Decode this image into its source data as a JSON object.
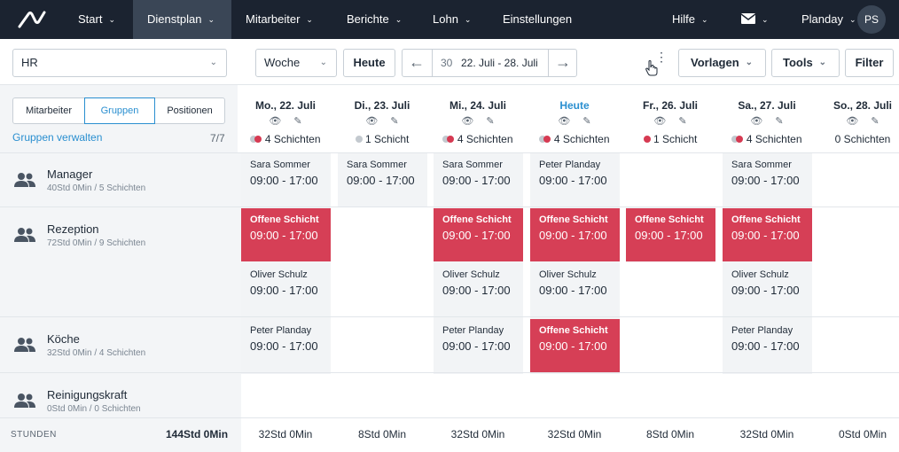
{
  "nav": {
    "items": [
      {
        "label": "Start",
        "chevron": true
      },
      {
        "label": "Dienstplan",
        "chevron": true
      },
      {
        "label": "Mitarbeiter",
        "chevron": true
      },
      {
        "label": "Berichte",
        "chevron": true
      },
      {
        "label": "Lohn",
        "chevron": true
      },
      {
        "label": "Einstellungen",
        "chevron": false
      }
    ],
    "help": "Hilfe",
    "account": "Planday",
    "avatar": "PS"
  },
  "toolbar": {
    "department": "HR",
    "view": "Woche",
    "today_button": "Heute",
    "week_number": "30",
    "date_range": "22. Juli - 28. Juli",
    "templates": "Vorlagen",
    "tools": "Tools",
    "filter": "Filter"
  },
  "left": {
    "tabs": [
      "Mitarbeiter",
      "Gruppen",
      "Positionen"
    ],
    "active_tab": "Gruppen",
    "manage_groups": "Gruppen verwalten",
    "group_count": "7/7",
    "groups": [
      {
        "name": "Manager",
        "summary": "40Std 0Min / 5 Schichten"
      },
      {
        "name": "Rezeption",
        "summary": "72Std 0Min / 9 Schichten"
      },
      {
        "name": "Köche",
        "summary": "32Std 0Min / 4 Schichten"
      },
      {
        "name": "Reinigungskraft",
        "summary": "0Std 0Min / 0 Schichten"
      }
    ]
  },
  "days": [
    {
      "label": "Mo., 22. Juli",
      "shifts": "4 Schichten",
      "dots": [
        "g",
        "r"
      ],
      "today": false
    },
    {
      "label": "Di., 23. Juli",
      "shifts": "1 Schicht",
      "dots": [
        "g"
      ],
      "today": false
    },
    {
      "label": "Mi., 24. Juli",
      "shifts": "4 Schichten",
      "dots": [
        "g",
        "r"
      ],
      "today": false
    },
    {
      "label": "Heute",
      "shifts": "4 Schichten",
      "dots": [
        "g",
        "r"
      ],
      "today": true
    },
    {
      "label": "Fr., 26. Juli",
      "shifts": "1 Schicht",
      "dots": [
        "r"
      ],
      "today": false
    },
    {
      "label": "Sa., 27. Juli",
      "shifts": "4 Schichten",
      "dots": [
        "g",
        "r"
      ],
      "today": false
    },
    {
      "label": "So., 28. Juli",
      "shifts": "0 Schichten",
      "dots": [],
      "today": false
    }
  ],
  "shifts": {
    "manager": [
      {
        "who": "Sara Sommer",
        "time": "09:00  - 17:00",
        "open": false
      },
      {
        "who": "Sara Sommer",
        "time": "09:00  - 17:00",
        "open": false
      },
      {
        "who": "Sara Sommer",
        "time": "09:00  - 17:00",
        "open": false
      },
      {
        "who": "Peter Planday",
        "time": "09:00  - 17:00",
        "open": false
      },
      {
        "who": "Sara Sommer",
        "time": "09:00  - 17:00",
        "open": false
      }
    ],
    "rezeption_1": [
      {
        "who": "Offene Schicht",
        "time": "09:00  - 17:00",
        "open": true
      },
      {
        "who": "Offene Schicht",
        "time": "09:00  - 17:00",
        "open": true
      },
      {
        "who": "Offene Schicht",
        "time": "09:00  - 17:00",
        "open": true
      },
      {
        "who": "Offene Schicht",
        "time": "09:00  - 17:00",
        "open": true
      },
      {
        "who": "Offene Schicht",
        "time": "09:00  - 17:00",
        "open": true
      }
    ],
    "rezeption_2": [
      {
        "who": "Oliver Schulz",
        "time": "09:00  - 17:00",
        "open": false
      },
      {
        "who": "Oliver Schulz",
        "time": "09:00  - 17:00",
        "open": false
      },
      {
        "who": "Oliver Schulz",
        "time": "09:00  - 17:00",
        "open": false
      },
      {
        "who": "Oliver Schulz",
        "time": "09:00  - 17:00",
        "open": false
      }
    ],
    "koeche": [
      {
        "who": "Peter Planday",
        "time": "09:00  - 17:00",
        "open": false
      },
      {
        "who": "Peter Planday",
        "time": "09:00  - 17:00",
        "open": false
      },
      {
        "who": "Offene Schicht",
        "time": "09:00  - 17:00",
        "open": true
      },
      {
        "who": "Peter Planday",
        "time": "09:00  - 17:00",
        "open": false
      }
    ]
  },
  "footer": {
    "label": "STUNDEN",
    "total": "144Std 0Min",
    "per_day": [
      "32Std 0Min",
      "8Std 0Min",
      "32Std 0Min",
      "32Std 0Min",
      "8Std 0Min",
      "32Std 0Min",
      "0Std 0Min"
    ]
  },
  "colors": {
    "nav_bg": "#1b2330",
    "accent": "#2a8fd0",
    "open_shift": "#d63f56"
  }
}
